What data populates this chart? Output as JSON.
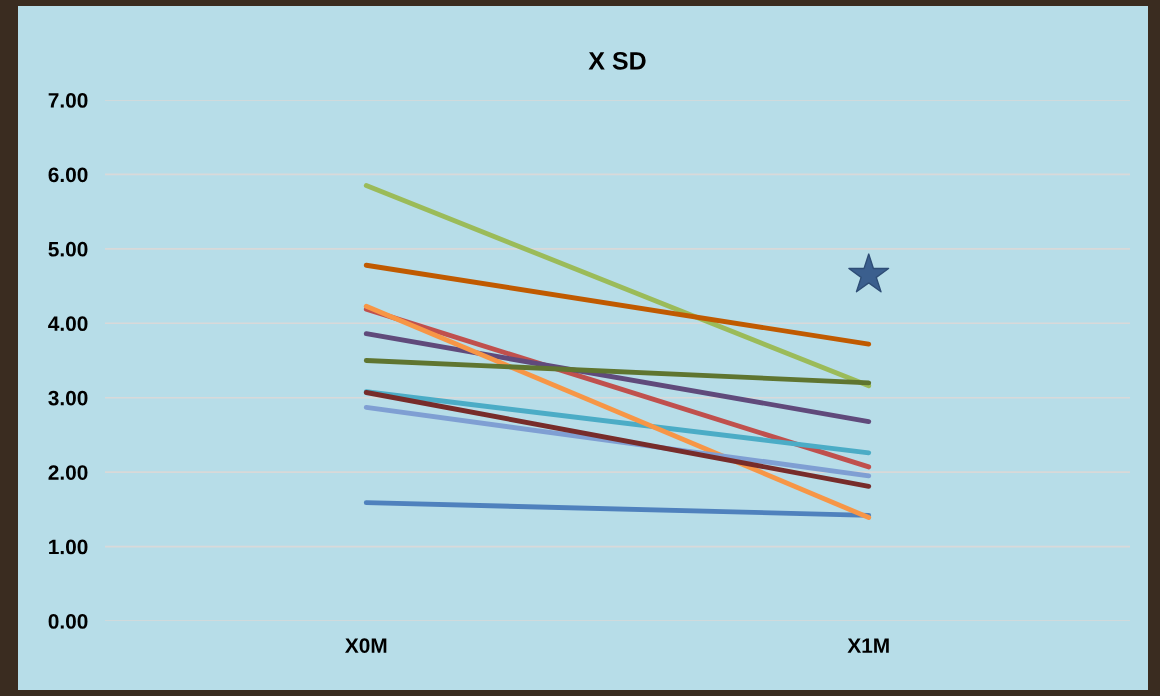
{
  "chart_data": {
    "type": "line",
    "title": "X SD",
    "categories": [
      "X0M",
      "X1M"
    ],
    "ylim": [
      0,
      7
    ],
    "yticks": [
      {
        "value": 0,
        "label": "0.00"
      },
      {
        "value": 1,
        "label": "1.00"
      },
      {
        "value": 2,
        "label": "2.00"
      },
      {
        "value": 3,
        "label": "3.00"
      },
      {
        "value": 4,
        "label": "4.00"
      },
      {
        "value": 5,
        "label": "5.00"
      },
      {
        "value": 6,
        "label": "6.00"
      },
      {
        "value": 7,
        "label": "7.00"
      }
    ],
    "grid": "y",
    "legend": false,
    "marker": "none",
    "line_style": "solid",
    "series": [
      {
        "color": "#4f81bd",
        "values": [
          1.59,
          1.42
        ]
      },
      {
        "color": "#c0504d",
        "values": [
          4.19,
          2.07
        ]
      },
      {
        "color": "#9bbb59",
        "values": [
          5.85,
          3.16
        ]
      },
      {
        "color": "#604a7b",
        "values": [
          3.86,
          2.68
        ]
      },
      {
        "color": "#4bacc6",
        "values": [
          3.08,
          2.26
        ]
      },
      {
        "color": "#f79646",
        "values": [
          4.23,
          1.39
        ]
      },
      {
        "color": "#7f9fd3",
        "values": [
          2.87,
          1.95
        ]
      },
      {
        "color": "#772c2a",
        "values": [
          3.07,
          1.81
        ]
      },
      {
        "color": "#5f7530",
        "values": [
          3.5,
          3.2
        ]
      },
      {
        "color": "#c05a00",
        "values": [
          4.78,
          3.72
        ]
      },
      {
        "type": "scatter",
        "marker": "star",
        "color": "#3b5f8e",
        "x": [
          "X1M"
        ],
        "values": [
          4.65
        ]
      }
    ]
  }
}
